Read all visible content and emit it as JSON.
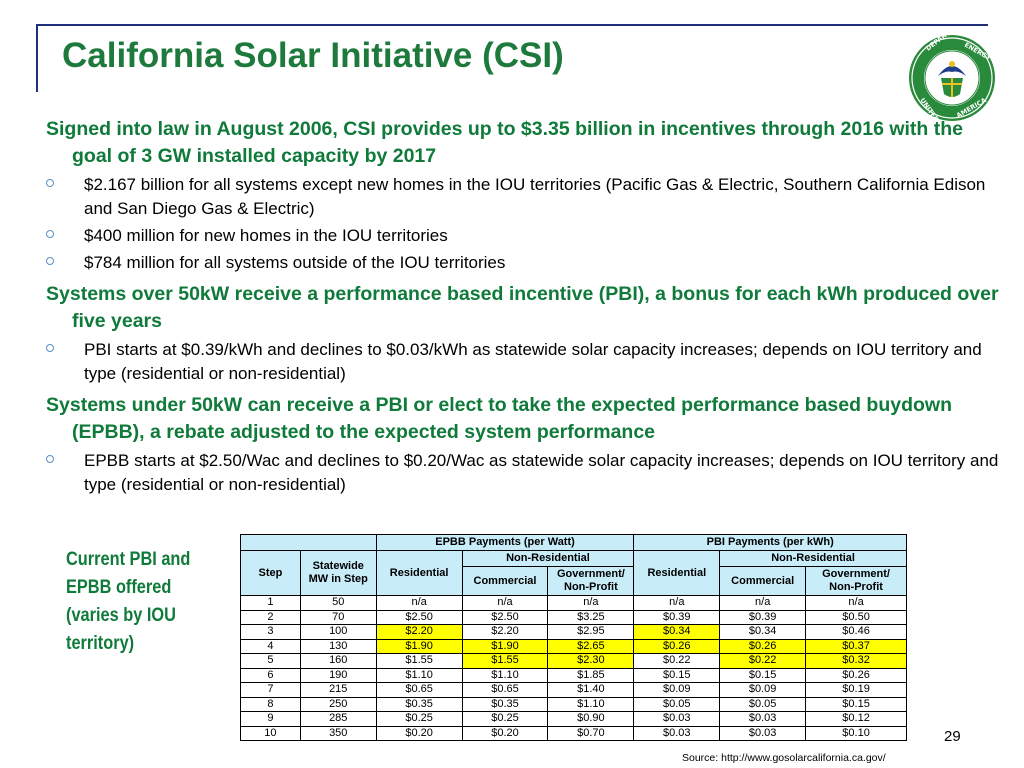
{
  "slide": {
    "title": "California Solar Initiative (CSI)",
    "page_number": "29",
    "source": "Source: http://www.gosolarcalifornia.ca.gov/",
    "logo": "department-of-energy-seal"
  },
  "bullets": [
    {
      "text": "Signed into law in August 2006, CSI provides up to $3.35 billion in incentives through 2016 with the goal of 3 GW installed capacity by 2017",
      "sub": [
        "$2.167 billion for all systems except new homes in the IOU territories (Pacific Gas & Electric, Southern California Edison and San Diego Gas & Electric)",
        "$400 million for new homes in the IOU territories",
        "$784 million for all systems outside of the IOU territories"
      ]
    },
    {
      "text": "Systems over 50kW receive a performance based incentive (PBI), a bonus for each kWh produced over five years",
      "sub": [
        "PBI starts at $0.39/kWh and declines to $0.03/kWh as statewide solar capacity increases; depends on IOU territory and type (residential or non-residential)"
      ]
    },
    {
      "text": "Systems under 50kW can receive a PBI or elect to take the expected performance based buydown (EPBB), a rebate adjusted to the expected system performance",
      "sub": [
        "EPBB starts at $2.50/Wac and declines to $0.20/Wac as statewide solar capacity increases; depends on IOU territory and type (residential or non-residential)"
      ]
    }
  ],
  "side_note": {
    "lines": [
      "Current PBI and",
      "EPBB offered",
      "(varies by IOU",
      "territory)"
    ]
  },
  "table": {
    "group_epbb": "EPBB Payments (per Watt)",
    "group_pbi": "PBI Payments (per kWh)",
    "col_step": "Step",
    "col_statewide": "Statewide MW in Step",
    "col_residential": "Residential",
    "col_nonres": "Non-Residential",
    "col_commercial": "Commercial",
    "col_gov": "Government/ Non-Profit",
    "highlight_color": "#ffff00",
    "header_color": "#c9ecf9",
    "rows": [
      [
        "1",
        "50",
        "n/a",
        "n/a",
        "n/a",
        "n/a",
        "n/a",
        "n/a"
      ],
      [
        "2",
        "70",
        "$2.50",
        "$2.50",
        "$3.25",
        "$0.39",
        "$0.39",
        "$0.50"
      ],
      [
        "3",
        "100",
        "$2.20",
        "$2.20",
        "$2.95",
        "$0.34",
        "$0.34",
        "$0.46"
      ],
      [
        "4",
        "130",
        "$1.90",
        "$1.90",
        "$2.65",
        "$0.26",
        "$0.26",
        "$0.37"
      ],
      [
        "5",
        "160",
        "$1.55",
        "$1.55",
        "$2.30",
        "$0.22",
        "$0.22",
        "$0.32"
      ],
      [
        "6",
        "190",
        "$1.10",
        "$1.10",
        "$1.85",
        "$0.15",
        "$0.15",
        "$0.26"
      ],
      [
        "7",
        "215",
        "$0.65",
        "$0.65",
        "$1.40",
        "$0.09",
        "$0.09",
        "$0.19"
      ],
      [
        "8",
        "250",
        "$0.35",
        "$0.35",
        "$1.10",
        "$0.05",
        "$0.05",
        "$0.15"
      ],
      [
        "9",
        "285",
        "$0.25",
        "$0.25",
        "$0.90",
        "$0.03",
        "$0.03",
        "$0.12"
      ],
      [
        "10",
        "350",
        "$0.20",
        "$0.20",
        "$0.70",
        "$0.03",
        "$0.03",
        "$0.10"
      ]
    ],
    "highlights": [
      [
        2,
        2
      ],
      [
        2,
        5
      ],
      [
        3,
        2
      ],
      [
        3,
        3
      ],
      [
        3,
        4
      ],
      [
        3,
        5
      ],
      [
        3,
        6
      ],
      [
        3,
        7
      ],
      [
        4,
        3
      ],
      [
        4,
        4
      ],
      [
        4,
        6
      ],
      [
        4,
        7
      ]
    ]
  }
}
